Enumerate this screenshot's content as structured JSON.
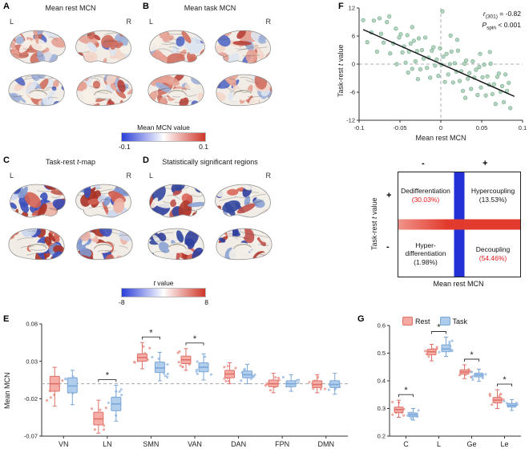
{
  "panels": {
    "A": {
      "label": "A",
      "title_pre": "Mean rest MCN",
      "title_it": "",
      "title_post": "",
      "left": "L",
      "right": "R"
    },
    "B": {
      "label": "B",
      "title_pre": "Mean task MCN",
      "title_it": "",
      "title_post": "",
      "left": "L",
      "right": "R"
    },
    "C": {
      "label": "C",
      "title_pre": "Task-rest ",
      "title_it": "t",
      "title_post": "-map",
      "left": "L",
      "right": "R"
    },
    "D": {
      "label": "D",
      "title_pre": "Statistically significant regions",
      "title_it": "",
      "title_post": "",
      "left": "L",
      "right": "R"
    },
    "E": {
      "label": "E"
    },
    "F": {
      "label": "F"
    },
    "G": {
      "label": "G"
    }
  },
  "colorbars": {
    "mcn": {
      "title_pre": "Mean MCN value",
      "title_it": "",
      "title_post": "",
      "min": "-0.1",
      "max": "0.1",
      "left_color": "#2b3fd8",
      "mid_color": "#ffffff",
      "right_color": "#cf3629"
    },
    "t": {
      "title_pre": "",
      "title_it": "t",
      "title_post": " value",
      "min": "-8",
      "max": "8",
      "left_color": "#2b3fd8",
      "mid_color": "#ffffff",
      "right_color": "#cf3629"
    }
  },
  "brains": {
    "base": "#f1ede6",
    "outline": "#8e8e8e",
    "panels": {
      "A": {
        "palette": [
          "#b8423a",
          "#cf6e5f",
          "#e5a193",
          "#f3d5c9",
          "#f6efe7",
          "#dde4f0",
          "#9fb0d8",
          "#5468c4",
          "#cf6e5f",
          "#e5a193"
        ]
      },
      "B": {
        "palette": [
          "#b8423a",
          "#cf6e5f",
          "#e5a193",
          "#f3d5c9",
          "#f6efe7",
          "#dde4f0",
          "#9fb0d8",
          "#5468c4",
          "#e5a193",
          "#cf6e5f"
        ]
      },
      "C": {
        "palette": [
          "#a93226",
          "#d26254",
          "#ecb2a5",
          "#f4efe8",
          "#cdd7ec",
          "#7f97cf",
          "#3b50ba",
          "#d26254",
          "#3b50ba",
          "#a93226"
        ]
      },
      "D": {
        "palette": [
          "#b03a2e",
          "#34489e",
          "#f2efe9",
          "#f2efe9",
          "#d9665a",
          "#8ba3d4",
          "#f2efe9",
          "#2f3f9e",
          "#c0504a",
          "#f2efe9"
        ]
      }
    }
  },
  "chart_data": [
    {
      "id": "F",
      "type": "scatter",
      "xlabel": "Mean rest MCN",
      "ylabel_pre": "Task-rest ",
      "ylabel_it": "t",
      "ylabel_post": " value",
      "xlim": [
        -0.1,
        0.1
      ],
      "ylim": [
        -12,
        12
      ],
      "xticks": [
        -0.1,
        -0.05,
        0,
        0.05,
        0.1
      ],
      "yticks": [
        12,
        6,
        0,
        -6,
        -12
      ],
      "grid": "dashed zero lines",
      "legend_position": "none",
      "annotation": {
        "r_it": "r",
        "r_sub": "(301)",
        "r_txt": " = -0.82",
        "p_it": "P",
        "p_sub": "spin",
        "p_txt": " < 0.001"
      },
      "regression": {
        "x1": -0.095,
        "y1": 7.4,
        "x2": 0.09,
        "y2": -6.9
      },
      "point_color": "#9bc7a9",
      "point_edge": "#6fa588",
      "points": [
        [
          -0.095,
          9.4
        ],
        [
          -0.09,
          4.7
        ],
        [
          -0.085,
          6.8
        ],
        [
          -0.082,
          9.3
        ],
        [
          -0.078,
          2.7
        ],
        [
          -0.073,
          6.5
        ],
        [
          -0.07,
          4.6
        ],
        [
          -0.066,
          9.0
        ],
        [
          -0.062,
          2.3
        ],
        [
          -0.058,
          4.4
        ],
        [
          -0.054,
          0.0
        ],
        [
          -0.051,
          5.7
        ],
        [
          -0.049,
          6.4
        ],
        [
          -0.047,
          2.5
        ],
        [
          -0.045,
          3.8
        ],
        [
          -0.043,
          0.3
        ],
        [
          -0.041,
          6.2
        ],
        [
          -0.039,
          2.7
        ],
        [
          -0.037,
          4.4
        ],
        [
          -0.035,
          -1.0
        ],
        [
          -0.033,
          5.0
        ],
        [
          -0.031,
          0.6
        ],
        [
          -0.029,
          2.8
        ],
        [
          -0.027,
          5.5
        ],
        [
          -0.025,
          -1.1
        ],
        [
          -0.023,
          3.0
        ],
        [
          -0.021,
          1.2
        ],
        [
          -0.019,
          5.7
        ],
        [
          -0.017,
          -0.8
        ],
        [
          -0.015,
          1.4
        ],
        [
          -0.013,
          -2.9
        ],
        [
          -0.011,
          2.9
        ],
        [
          -0.009,
          3.6
        ],
        [
          -0.007,
          -0.3
        ],
        [
          -0.005,
          1.0
        ],
        [
          -0.003,
          -2.5
        ],
        [
          -0.001,
          3.4
        ],
        [
          0.001,
          -0.1
        ],
        [
          0.003,
          1.6
        ],
        [
          0.005,
          -3.8
        ],
        [
          0.007,
          2.2
        ],
        [
          0.009,
          -2.2
        ],
        [
          0.011,
          0.0
        ],
        [
          0.013,
          2.7
        ],
        [
          0.015,
          -3.9
        ],
        [
          0.017,
          0.2
        ],
        [
          0.019,
          -1.6
        ],
        [
          0.021,
          2.9
        ],
        [
          0.023,
          -3.6
        ],
        [
          0.025,
          -1.5
        ],
        [
          0.027,
          -5.7
        ],
        [
          0.029,
          0.1
        ],
        [
          0.031,
          0.8
        ],
        [
          0.033,
          -3.1
        ],
        [
          0.035,
          -1.9
        ],
        [
          0.037,
          -5.3
        ],
        [
          0.039,
          0.6
        ],
        [
          0.041,
          -2.9
        ],
        [
          0.043,
          -1.2
        ],
        [
          0.045,
          -6.6
        ],
        [
          0.047,
          -0.6
        ],
        [
          0.049,
          -5.0
        ],
        [
          0.051,
          -2.8
        ],
        [
          0.053,
          -0.1
        ],
        [
          0.055,
          -6.7
        ],
        [
          0.057,
          -2.6
        ],
        [
          0.059,
          -4.4
        ],
        [
          0.061,
          0.1
        ],
        [
          0.063,
          -6.4
        ],
        [
          0.065,
          -4.3
        ],
        [
          0.067,
          -8.5
        ],
        [
          0.069,
          -2.7
        ],
        [
          0.071,
          -2.0
        ],
        [
          0.073,
          -5.9
        ],
        [
          0.075,
          -4.7
        ],
        [
          0.077,
          -8.1
        ],
        [
          0.079,
          -2.2
        ],
        [
          0.081,
          -5.7
        ],
        [
          0.083,
          -4.0
        ],
        [
          0.085,
          -9.4
        ],
        [
          -0.063,
          10.2
        ],
        [
          0.002,
          11.3
        ],
        [
          -0.035,
          7.9
        ],
        [
          0.02,
          5.2
        ],
        [
          0.06,
          2.6
        ],
        [
          -0.04,
          -1.8
        ],
        [
          0.03,
          -7.2
        ],
        [
          -0.075,
          9.8
        ],
        [
          0.012,
          6.1
        ],
        [
          -0.028,
          -3.2
        ],
        [
          0.048,
          2.2
        ],
        [
          -0.055,
          7.6
        ]
      ]
    },
    {
      "id": "quadrant",
      "type": "quadrant",
      "xlabel": "Mean rest MCN",
      "ylabel_pre": "Task-rest ",
      "ylabel_it": "t",
      "ylabel_post": " value",
      "x_neg_sign": "-",
      "x_pos_sign": "+",
      "y_pos_sign": "+",
      "y_neg_sign": "-",
      "bar_vertical_color": "#2230d6",
      "bar_horizontal_color": "#e23a2c",
      "quadrants": [
        {
          "position": "top-left",
          "name": "Dedifferentiation",
          "pct": "(30.03%)",
          "pct_color": "#e31a1a"
        },
        {
          "position": "top-right",
          "name": "Hypercoupling",
          "pct": "(13.53%)",
          "pct_color": "#141414"
        },
        {
          "position": "bottom-left",
          "name": "Hyper-differentiation",
          "pct": "(1.98%)",
          "pct_color": "#141414"
        },
        {
          "position": "bottom-right",
          "name": "Decoupling",
          "pct": "(54.46%)",
          "pct_color": "#e31a1a"
        }
      ]
    },
    {
      "id": "E",
      "type": "box",
      "ylabel": "Mean MCN",
      "ylim": [
        -0.07,
        0.08
      ],
      "yticks": [
        0.08,
        0.03,
        -0.02,
        -0.07
      ],
      "zero_line": 0,
      "sig_marker": "*",
      "categories": [
        "VN",
        "LN",
        "SMN",
        "VAN",
        "DAN",
        "FPN",
        "DMN"
      ],
      "significant": [
        1,
        2,
        3
      ],
      "series": [
        {
          "name": "Rest",
          "fill": "#f5a9a2",
          "edge": "#dd7168",
          "boxes": [
            [
              -0.03,
              -0.01,
              0.0,
              0.01,
              0.022
            ],
            [
              -0.066,
              -0.055,
              -0.047,
              -0.038,
              -0.022
            ],
            [
              0.02,
              0.03,
              0.035,
              0.04,
              0.055
            ],
            [
              0.018,
              0.027,
              0.032,
              0.037,
              0.047
            ],
            [
              0.0,
              0.008,
              0.013,
              0.018,
              0.028
            ],
            [
              -0.012,
              -0.004,
              0.0,
              0.005,
              0.014
            ],
            [
              -0.012,
              -0.005,
              -0.001,
              0.004,
              0.012
            ]
          ]
        },
        {
          "name": "Task",
          "fill": "#adcbeb",
          "edge": "#7aa6d8",
          "boxes": [
            [
              -0.028,
              -0.012,
              -0.003,
              0.008,
              0.018
            ],
            [
              -0.05,
              -0.036,
              -0.027,
              -0.018,
              -0.002
            ],
            [
              0.004,
              0.015,
              0.021,
              0.029,
              0.042
            ],
            [
              0.005,
              0.016,
              0.022,
              0.028,
              0.04
            ],
            [
              0.0,
              0.008,
              0.012,
              0.017,
              0.026
            ],
            [
              -0.01,
              -0.004,
              0.0,
              0.004,
              0.012
            ],
            [
              -0.014,
              -0.005,
              -0.001,
              0.004,
              0.014
            ]
          ]
        }
      ]
    },
    {
      "id": "G",
      "type": "box",
      "ylabel": "",
      "ylim": [
        0.2,
        0.6
      ],
      "yticks": [
        0.6,
        0.5,
        0.4,
        0.3,
        0.2
      ],
      "sig_marker": "*",
      "categories": [
        "C",
        "L",
        "Ge",
        "Le"
      ],
      "significant": [
        0,
        1,
        2,
        3
      ],
      "legend_position": "top",
      "series": [
        {
          "name": "Rest",
          "fill": "#f5a9a2",
          "edge": "#dd7168",
          "boxes": [
            [
              0.268,
              0.285,
              0.296,
              0.305,
              0.33
            ],
            [
              0.472,
              0.494,
              0.505,
              0.514,
              0.532
            ],
            [
              0.408,
              0.424,
              0.432,
              0.44,
              0.458
            ],
            [
              0.3,
              0.32,
              0.33,
              0.34,
              0.368
            ]
          ]
        },
        {
          "name": "Task",
          "fill": "#adcbeb",
          "edge": "#7aa6d8",
          "boxes": [
            [
              0.258,
              0.27,
              0.277,
              0.284,
              0.3
            ],
            [
              0.488,
              0.505,
              0.515,
              0.53,
              0.558
            ],
            [
              0.398,
              0.414,
              0.421,
              0.428,
              0.442
            ],
            [
              0.293,
              0.305,
              0.311,
              0.318,
              0.332
            ]
          ]
        }
      ]
    }
  ]
}
